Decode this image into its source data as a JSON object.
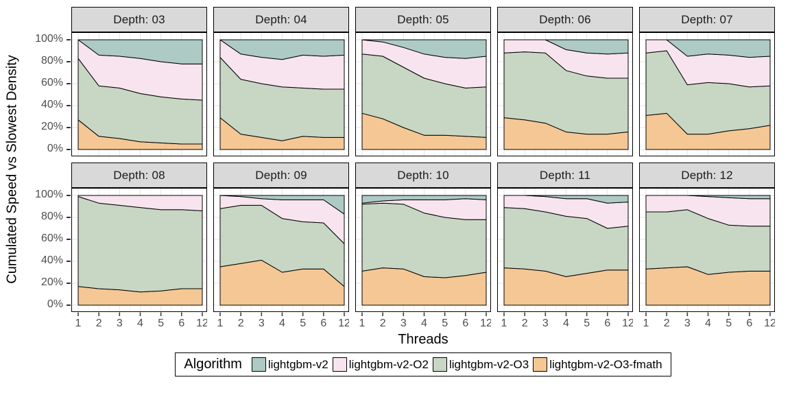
{
  "page": {
    "background": "#ffffff"
  },
  "colors": {
    "strip_bg": "#d9d9d9",
    "strip_border": "#000000",
    "strip_text": "#1a1a1a",
    "panel_bg": "#ffffff",
    "panel_border": "#000000",
    "grid_major": "#e6e6e6",
    "grid_minor": "#f2f2f2",
    "tick_mark": "#333333",
    "tick_label": "#4d4d4d",
    "axis_title": "#000000",
    "area_outline": "#000000",
    "series": {
      "lightgbm-v2": "#aecac4",
      "lightgbm-v2-O2": "#f8e4ee",
      "lightgbm-v2-O3": "#c8d6c4",
      "lightgbm-v2-O3-fmath": "#f4c795"
    }
  },
  "y_axis": {
    "title": "Cumulated Speed vs Slowest Density",
    "ticks_display": [
      "100%",
      "80%",
      "60%",
      "40%",
      "20%",
      "0%"
    ]
  },
  "x_axis": {
    "title": "Threads",
    "ticks": [
      "1",
      "2",
      "3",
      "4",
      "5",
      "6",
      "12"
    ]
  },
  "legend": {
    "title": "Algorithm",
    "items": [
      {
        "label": "lightgbm-v2",
        "color": "#aecac4"
      },
      {
        "label": "lightgbm-v2-O2",
        "color": "#f8e4ee"
      },
      {
        "label": "lightgbm-v2-O3",
        "color": "#c8d6c4"
      },
      {
        "label": "lightgbm-v2-O3-fmath",
        "color": "#f4c795"
      }
    ]
  },
  "chart_data": {
    "type": "area",
    "variant": "stacked-percent-by-facet",
    "title": "",
    "xlabel": "Threads",
    "ylabel": "Cumulated Speed vs Slowest Density",
    "x": [
      1,
      2,
      3,
      4,
      5,
      6,
      12
    ],
    "x_scale": "evenly-spaced-ticks",
    "ylim": [
      0,
      100
    ],
    "y_unit": "%",
    "grid": true,
    "legend_position": "bottom",
    "stack_order_bottom_to_top": [
      "lightgbm-v2-O3-fmath",
      "lightgbm-v2-O3",
      "lightgbm-v2-O2",
      "lightgbm-v2"
    ],
    "facets": [
      {
        "title": "Depth: 03",
        "cumulative_tops": {
          "lightgbm-v2-O3-fmath": [
            27,
            12,
            10,
            7,
            6,
            5,
            5
          ],
          "lightgbm-v2-O3": [
            83,
            58,
            56,
            51,
            48,
            46,
            45
          ],
          "lightgbm-v2-O2": [
            100,
            86,
            85,
            83,
            80,
            78,
            78
          ],
          "lightgbm-v2": [
            100,
            100,
            100,
            100,
            100,
            100,
            100
          ]
        }
      },
      {
        "title": "Depth: 04",
        "cumulative_tops": {
          "lightgbm-v2-O3-fmath": [
            29,
            14,
            11,
            8,
            12,
            11,
            11
          ],
          "lightgbm-v2-O3": [
            84,
            64,
            60,
            57,
            56,
            55,
            55
          ],
          "lightgbm-v2-O2": [
            100,
            87,
            84,
            82,
            86,
            85,
            86
          ],
          "lightgbm-v2": [
            100,
            100,
            100,
            100,
            100,
            100,
            100
          ]
        }
      },
      {
        "title": "Depth: 05",
        "cumulative_tops": {
          "lightgbm-v2-O3-fmath": [
            33,
            28,
            20,
            13,
            13,
            12,
            11
          ],
          "lightgbm-v2-O3": [
            87,
            85,
            75,
            65,
            60,
            56,
            57
          ],
          "lightgbm-v2-O2": [
            100,
            98,
            93,
            87,
            84,
            83,
            85
          ],
          "lightgbm-v2": [
            100,
            100,
            100,
            100,
            100,
            100,
            100
          ]
        }
      },
      {
        "title": "Depth: 06",
        "cumulative_tops": {
          "lightgbm-v2-O3-fmath": [
            29,
            27,
            24,
            16,
            14,
            14,
            16
          ],
          "lightgbm-v2-O3": [
            88,
            89,
            88,
            72,
            67,
            65,
            65
          ],
          "lightgbm-v2-O2": [
            100,
            100,
            100,
            91,
            88,
            87,
            88
          ],
          "lightgbm-v2": [
            100,
            100,
            100,
            100,
            100,
            100,
            100
          ]
        }
      },
      {
        "title": "Depth: 07",
        "cumulative_tops": {
          "lightgbm-v2-O3-fmath": [
            31,
            33,
            14,
            14,
            17,
            19,
            22
          ],
          "lightgbm-v2-O3": [
            88,
            90,
            59,
            61,
            60,
            57,
            58
          ],
          "lightgbm-v2-O2": [
            100,
            100,
            85,
            87,
            86,
            84,
            85
          ],
          "lightgbm-v2": [
            100,
            100,
            100,
            100,
            100,
            100,
            100
          ]
        }
      },
      {
        "title": "Depth: 08",
        "cumulative_tops": {
          "lightgbm-v2-O3-fmath": [
            17,
            15,
            14,
            12,
            13,
            15,
            15
          ],
          "lightgbm-v2-O3": [
            99,
            93,
            91,
            89,
            87,
            87,
            86
          ],
          "lightgbm-v2-O2": [
            100,
            100,
            100,
            100,
            100,
            100,
            100
          ],
          "lightgbm-v2": [
            100,
            100,
            100,
            100,
            100,
            100,
            100
          ]
        }
      },
      {
        "title": "Depth: 09",
        "cumulative_tops": {
          "lightgbm-v2-O3-fmath": [
            35,
            38,
            41,
            30,
            33,
            33,
            17
          ],
          "lightgbm-v2-O3": [
            88,
            91,
            91,
            79,
            76,
            75,
            56
          ],
          "lightgbm-v2-O2": [
            100,
            99,
            97,
            96,
            96,
            96,
            83
          ],
          "lightgbm-v2": [
            100,
            100,
            100,
            100,
            100,
            100,
            100
          ]
        }
      },
      {
        "title": "Depth: 10",
        "cumulative_tops": {
          "lightgbm-v2-O3-fmath": [
            31,
            34,
            33,
            26,
            25,
            27,
            30
          ],
          "lightgbm-v2-O3": [
            92,
            93,
            92,
            84,
            80,
            78,
            78
          ],
          "lightgbm-v2-O2": [
            93,
            95,
            96,
            96,
            96,
            97,
            96
          ],
          "lightgbm-v2": [
            100,
            100,
            100,
            100,
            100,
            100,
            100
          ]
        }
      },
      {
        "title": "Depth: 11",
        "cumulative_tops": {
          "lightgbm-v2-O3-fmath": [
            34,
            33,
            31,
            26,
            29,
            32,
            32
          ],
          "lightgbm-v2-O3": [
            89,
            88,
            85,
            81,
            79,
            70,
            72
          ],
          "lightgbm-v2-O2": [
            100,
            100,
            99,
            97,
            97,
            93,
            94
          ],
          "lightgbm-v2": [
            100,
            100,
            100,
            100,
            100,
            100,
            100
          ]
        }
      },
      {
        "title": "Depth: 12",
        "cumulative_tops": {
          "lightgbm-v2-O3-fmath": [
            33,
            34,
            35,
            28,
            30,
            31,
            31
          ],
          "lightgbm-v2-O3": [
            85,
            85,
            87,
            79,
            73,
            72,
            72
          ],
          "lightgbm-v2-O2": [
            100,
            100,
            100,
            99,
            98,
            97,
            97
          ],
          "lightgbm-v2": [
            100,
            100,
            100,
            100,
            100,
            100,
            100
          ]
        }
      }
    ]
  }
}
